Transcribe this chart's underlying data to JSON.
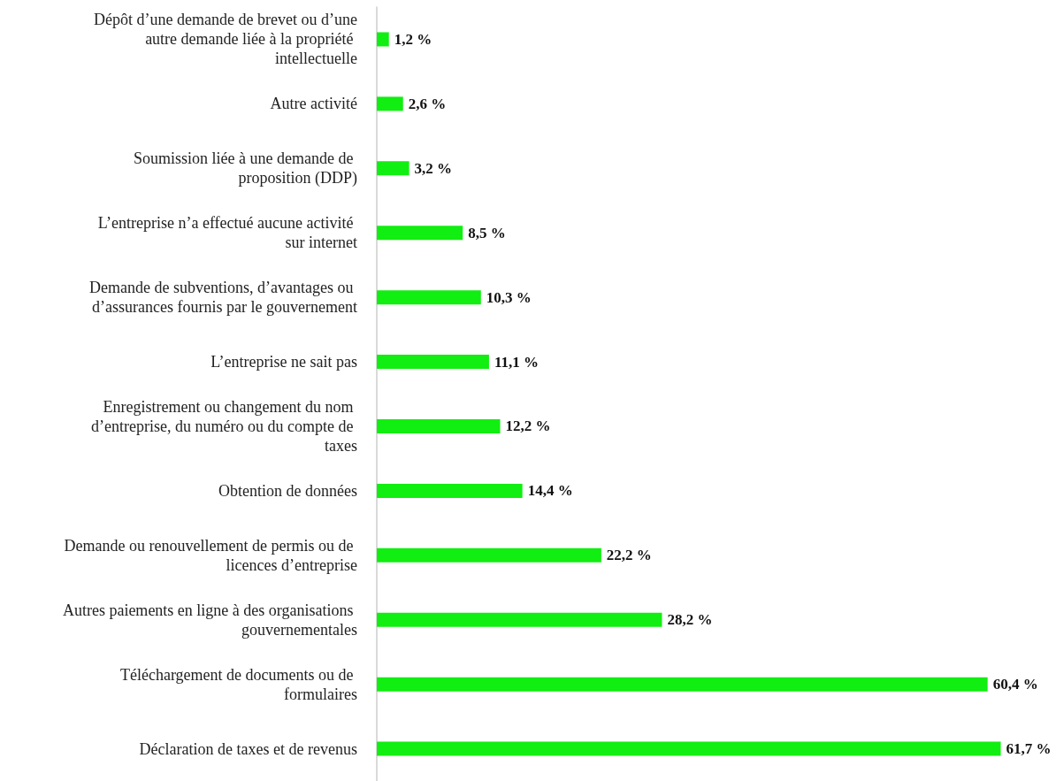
{
  "chart_data": {
    "type": "bar",
    "orientation": "horizontal",
    "categories": [
      "Dépôt d’une demande de brevet ou d’une autre demande liée à la propriété intellectuelle",
      "Autre activité",
      "Soumission liée à une demande de proposition (DDP)",
      "L’entreprise n’a effectué aucune activité sur internet",
      "Demande de subventions, d’avantages ou d’assurances fournis par le gouvernement",
      "L’entreprise ne sait pas",
      "Enregistrement ou changement du nom d’entreprise, du numéro ou du compte de taxes",
      "Obtention de données",
      "Demande ou renouvellement de permis ou de licences d’entreprise",
      "Autres paiements en ligne à des organisations gouvernementales",
      "Téléchargement de documents ou de formulaires",
      "Déclaration de taxes et de revenus"
    ],
    "values": [
      1.2,
      2.6,
      3.2,
      8.5,
      10.3,
      11.1,
      12.2,
      14.4,
      22.2,
      28.2,
      60.4,
      61.7
    ],
    "value_labels": [
      "1,2 %",
      "2,6 %",
      "3,2 %",
      "8,5 %",
      "10,3 %",
      "11,1 %",
      "12,2 %",
      "14,4 %",
      "22,2 %",
      "28,2 %",
      "60,4 %",
      "61,7 %"
    ],
    "color": "#11ee11",
    "tick_labels": "y"
  }
}
